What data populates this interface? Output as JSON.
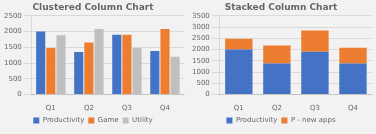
{
  "chart_data": [
    {
      "type": "bar",
      "title": "Clustered Column Chart",
      "categories": [
        "Q1",
        "Q2",
        "Q3",
        "Q4"
      ],
      "series": [
        {
          "name": "Productivity",
          "color": "#4472C4",
          "values": [
            2000,
            1350,
            1900,
            1380
          ]
        },
        {
          "name": "Game",
          "color": "#ED7D31",
          "values": [
            1480,
            1650,
            1900,
            2080
          ]
        },
        {
          "name": "Utility",
          "color": "#BFBFBF",
          "values": [
            1880,
            2080,
            1480,
            1200
          ]
        }
      ],
      "ylim": [
        0,
        2500
      ],
      "yticks": [
        0,
        500,
        1000,
        1500,
        2000,
        2500
      ],
      "grid": true,
      "legend": "bottom"
    },
    {
      "type": "bar",
      "title": "Stacked Column Chart",
      "stacked": true,
      "categories": [
        "Q1",
        "Q2",
        "Q3",
        "Q4"
      ],
      "series": [
        {
          "name": "Productivity",
          "color": "#4472C4",
          "values": [
            2000,
            1380,
            1900,
            1380
          ]
        },
        {
          "name": "P - new apps",
          "color": "#ED7D31",
          "values": [
            480,
            800,
            950,
            700
          ]
        }
      ],
      "ylim": [
        0,
        3500
      ],
      "yticks": [
        0,
        500,
        1000,
        1500,
        2000,
        2500,
        3000,
        3500
      ],
      "grid": true,
      "legend": "bottom"
    }
  ]
}
